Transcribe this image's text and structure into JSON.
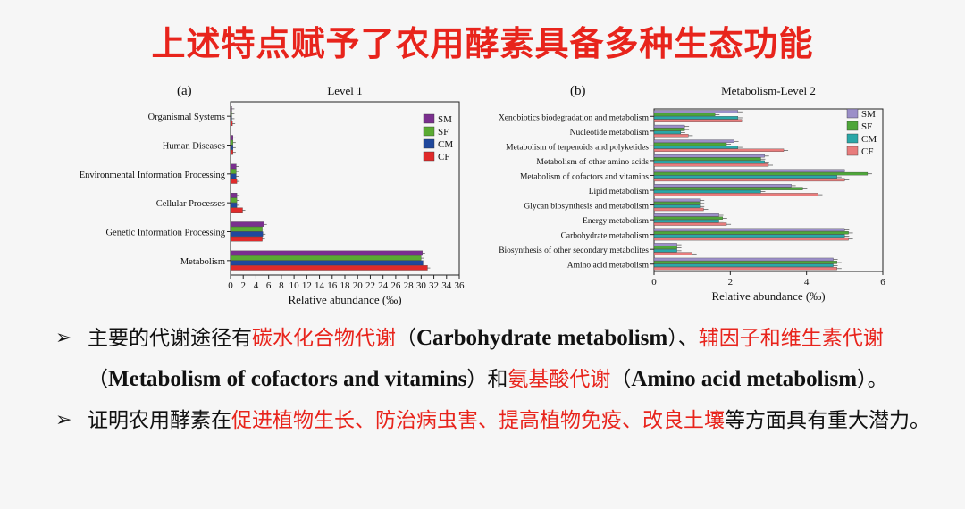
{
  "slide": {
    "title": "上述特点赋予了农用酵素具备多种生态功能"
  },
  "colors": {
    "title": "#e8241c",
    "SM": "#7a2f8e",
    "SF": "#5aaa32",
    "CM": "#20489c",
    "CF": "#e02a2a",
    "SM_b": "#9b8fc8",
    "SF_b": "#4ea63a",
    "CM_b": "#2aa7a8",
    "CF_b": "#e87c7c"
  },
  "chart_data": [
    {
      "type": "bar",
      "orientation": "horizontal",
      "panel": "(a)",
      "title": "Level 1",
      "xlabel": "Relative abundance (‰)",
      "xlim": [
        0,
        36
      ],
      "xticks": [
        0,
        2,
        4,
        6,
        8,
        10,
        12,
        14,
        16,
        18,
        20,
        22,
        24,
        26,
        28,
        30,
        32,
        34,
        36
      ],
      "categories": [
        "Organismal Systems",
        "Human Diseases",
        "Environmental Information Processing",
        "Cellular Processes",
        "Genetic Information Processing",
        "Metabolism"
      ],
      "series": [
        {
          "name": "SM",
          "values": [
            0.2,
            0.4,
            0.9,
            1.0,
            5.3,
            30.2
          ]
        },
        {
          "name": "SF",
          "values": [
            0.2,
            0.4,
            0.9,
            1.0,
            5.0,
            30.0
          ]
        },
        {
          "name": "CM",
          "values": [
            0.2,
            0.4,
            0.9,
            1.0,
            5.1,
            30.3
          ]
        },
        {
          "name": "CF",
          "values": [
            0.3,
            0.4,
            1.0,
            1.9,
            5.0,
            31.0
          ]
        }
      ],
      "legend": [
        "SM",
        "SF",
        "CM",
        "CF"
      ],
      "legend_position": "top-right"
    },
    {
      "type": "bar",
      "orientation": "horizontal",
      "panel": "(b)",
      "title": "Metabolism-Level 2",
      "xlabel": "Relative abundance (‰)",
      "xlim": [
        0,
        6
      ],
      "xticks": [
        0,
        2,
        4,
        6
      ],
      "categories": [
        "Xenobiotics biodegradation and metabolism",
        "Nucleotide metabolism",
        "Metabolism of terpenoids and polyketides",
        "Metabolism of other amino acids",
        "Metabolism of cofactors and vitamins",
        "Lipid metabolism",
        "Glycan biosynthesis and metabolism",
        "Energy metabolism",
        "Carbohydrate metabolism",
        "Biosynthesis of other secondary metabolites",
        "Amino acid metabolism"
      ],
      "series": [
        {
          "name": "SM",
          "values": [
            2.2,
            0.8,
            2.1,
            2.9,
            5.0,
            3.6,
            1.2,
            1.7,
            5.0,
            0.6,
            4.7
          ]
        },
        {
          "name": "SF",
          "values": [
            1.6,
            0.8,
            1.9,
            2.8,
            5.6,
            3.9,
            1.2,
            1.8,
            5.1,
            0.6,
            4.8
          ]
        },
        {
          "name": "CM",
          "values": [
            2.2,
            0.7,
            2.2,
            2.9,
            4.8,
            2.8,
            1.2,
            1.7,
            5.0,
            0.6,
            4.7
          ]
        },
        {
          "name": "CF",
          "values": [
            2.3,
            0.9,
            3.4,
            3.0,
            5.0,
            4.3,
            1.3,
            1.9,
            5.1,
            1.0,
            4.8
          ]
        }
      ],
      "legend": [
        "SM",
        "SF",
        "CM",
        "CF"
      ],
      "legend_position": "top-right"
    }
  ],
  "bullets": [
    {
      "parts": [
        {
          "text": "主要的代谢途径有",
          "style": "normal"
        },
        {
          "text": "碳水化合物代谢",
          "style": "red"
        },
        {
          "text": "（",
          "style": "normal"
        },
        {
          "text": "Carbohydrate metabolism",
          "style": "en"
        },
        {
          "text": "）、",
          "style": "normal"
        },
        {
          "text": "辅因子和维生素代谢",
          "style": "red"
        },
        {
          "text": "（",
          "style": "normal"
        },
        {
          "text": "Metabolism of cofactors and vitamins",
          "style": "en"
        },
        {
          "text": "）和",
          "style": "normal"
        },
        {
          "text": "氨基酸代谢",
          "style": "red"
        },
        {
          "text": "（",
          "style": "normal"
        },
        {
          "text": "Amino acid metabolism",
          "style": "en"
        },
        {
          "text": "）。",
          "style": "normal"
        }
      ]
    },
    {
      "parts": [
        {
          "text": "证明农用酵素在",
          "style": "normal"
        },
        {
          "text": "促进植物生长、防治病虫害、提高植物免疫、改良土壤",
          "style": "red"
        },
        {
          "text": "等方面具有重大潜力。",
          "style": "normal"
        }
      ]
    }
  ]
}
